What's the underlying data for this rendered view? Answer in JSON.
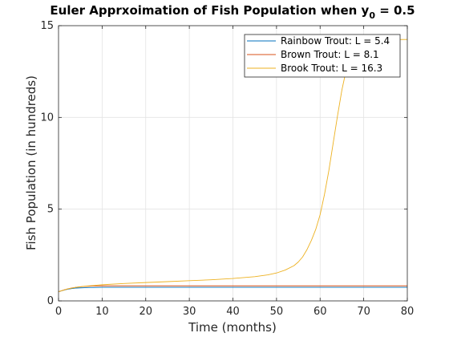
{
  "chart_data": {
    "type": "line",
    "title": "Euler Apprxoimation of Fish Population when y",
    "title_subscript": "0",
    "title_suffix": " = 0.5",
    "xlabel": "Time (months)",
    "ylabel": "Fish Population (in hundreds)",
    "xlim": [
      0,
      80
    ],
    "ylim": [
      0,
      15
    ],
    "xticks": [
      0,
      10,
      20,
      30,
      40,
      50,
      60,
      70,
      80
    ],
    "yticks": [
      0,
      5,
      10,
      15
    ],
    "grid": true,
    "legend_position": "top-right",
    "series": [
      {
        "name": "Rainbow Trout: L = 5.4",
        "color": "#0072BD",
        "x": [
          0,
          1,
          2,
          3,
          4,
          5,
          6,
          7,
          8,
          10,
          12,
          15,
          20,
          30,
          40,
          50,
          60,
          70,
          80
        ],
        "y": [
          0.5,
          0.57,
          0.63,
          0.67,
          0.7,
          0.71,
          0.72,
          0.73,
          0.73,
          0.74,
          0.74,
          0.74,
          0.74,
          0.74,
          0.74,
          0.74,
          0.74,
          0.74,
          0.74
        ]
      },
      {
        "name": "Brown Trout: L = 8.1",
        "color": "#D95319",
        "x": [
          0,
          1,
          2,
          3,
          4,
          5,
          6,
          8,
          10,
          12,
          15,
          20,
          30,
          40,
          50,
          60,
          70,
          80
        ],
        "y": [
          0.5,
          0.58,
          0.65,
          0.7,
          0.74,
          0.77,
          0.79,
          0.81,
          0.82,
          0.82,
          0.82,
          0.82,
          0.82,
          0.82,
          0.82,
          0.82,
          0.82,
          0.82
        ]
      },
      {
        "name": "Brook Trout: L = 16.3",
        "color": "#EDB120",
        "x": [
          0,
          2,
          4,
          6,
          8,
          10,
          15,
          20,
          25,
          30,
          35,
          40,
          45,
          48,
          50,
          52,
          54,
          55,
          56,
          57,
          58,
          59,
          60,
          61,
          62,
          63,
          64,
          65,
          66,
          67,
          68,
          70,
          72,
          75,
          80
        ],
        "y": [
          0.5,
          0.65,
          0.74,
          0.8,
          0.84,
          0.88,
          0.95,
          1.0,
          1.05,
          1.1,
          1.15,
          1.22,
          1.32,
          1.42,
          1.52,
          1.68,
          1.92,
          2.12,
          2.4,
          2.8,
          3.3,
          3.9,
          4.7,
          5.8,
          7.1,
          8.6,
          10.1,
          11.5,
          12.6,
          13.3,
          13.75,
          14.1,
          14.2,
          14.24,
          14.25
        ]
      }
    ]
  }
}
